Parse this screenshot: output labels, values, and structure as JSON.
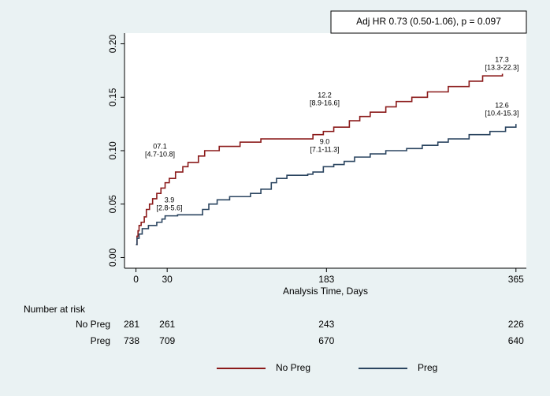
{
  "chart_data": {
    "type": "step",
    "hr_box": "Adj HR 0.73 (0.50-1.06), p = 0.097",
    "x_label": "Analysis Time, Days",
    "xlim": [
      -11,
      375
    ],
    "ylim": [
      -0.01,
      0.21
    ],
    "xticks": [
      0,
      30,
      183,
      365
    ],
    "yticks": [
      {
        "value": 0,
        "label": "0.00"
      },
      {
        "value": 0.05,
        "label": "0.05"
      },
      {
        "value": 0.1,
        "label": "0.10"
      },
      {
        "value": 0.15,
        "label": "0.15"
      },
      {
        "value": 0.2,
        "label": "0.20"
      }
    ],
    "series": [
      {
        "name": "No Preg",
        "color": "#8b1a1a",
        "x": [
          0,
          1,
          2,
          3,
          5,
          8,
          10,
          13,
          16,
          20,
          24,
          28,
          32,
          38,
          45,
          50,
          60,
          66,
          80,
          100,
          120,
          160,
          170,
          180,
          190,
          205,
          215,
          225,
          240,
          250,
          265,
          280,
          300,
          320,
          333,
          352
        ],
        "values": [
          0.012,
          0.02,
          0.025,
          0.03,
          0.033,
          0.038,
          0.045,
          0.05,
          0.055,
          0.06,
          0.065,
          0.07,
          0.074,
          0.08,
          0.085,
          0.089,
          0.095,
          0.1,
          0.104,
          0.108,
          0.111,
          0.111,
          0.115,
          0.118,
          0.122,
          0.128,
          0.132,
          0.136,
          0.141,
          0.146,
          0.15,
          0.155,
          0.16,
          0.165,
          0.17,
          0.172
        ],
        "annotations": [
          [
            "07.1",
            "[4.7-10.8]"
          ],
          [
            "12.2",
            "[8.9-16.6]"
          ],
          [
            "17.3",
            "[13.3-22.3]"
          ]
        ]
      },
      {
        "name": "Preg",
        "color": "#2b4560",
        "x": [
          0,
          1,
          3,
          6,
          12,
          20,
          25,
          28,
          40,
          60,
          64,
          70,
          78,
          90,
          110,
          120,
          130,
          135,
          145,
          165,
          170,
          180,
          190,
          200,
          210,
          225,
          240,
          260,
          275,
          290,
          300,
          320,
          340,
          355,
          365
        ],
        "values": [
          0.012,
          0.018,
          0.022,
          0.027,
          0.03,
          0.033,
          0.036,
          0.039,
          0.04,
          0.04,
          0.045,
          0.05,
          0.054,
          0.057,
          0.06,
          0.064,
          0.07,
          0.074,
          0.077,
          0.078,
          0.08,
          0.085,
          0.087,
          0.09,
          0.094,
          0.097,
          0.1,
          0.102,
          0.105,
          0.108,
          0.111,
          0.115,
          0.118,
          0.122,
          0.125
        ],
        "annotations": [
          [
            "3.9",
            "[2.8-5.6]"
          ],
          [
            "9.0",
            "[7.1-11.3]"
          ],
          [
            "12.6",
            "[10.4-15.3]"
          ]
        ]
      }
    ],
    "risk_table": {
      "title": "Number at risk",
      "rows": [
        {
          "name": "No Preg",
          "values": [
            281,
            261,
            243,
            226
          ]
        },
        {
          "name": "Preg",
          "values": [
            738,
            709,
            670,
            640
          ]
        }
      ]
    }
  }
}
